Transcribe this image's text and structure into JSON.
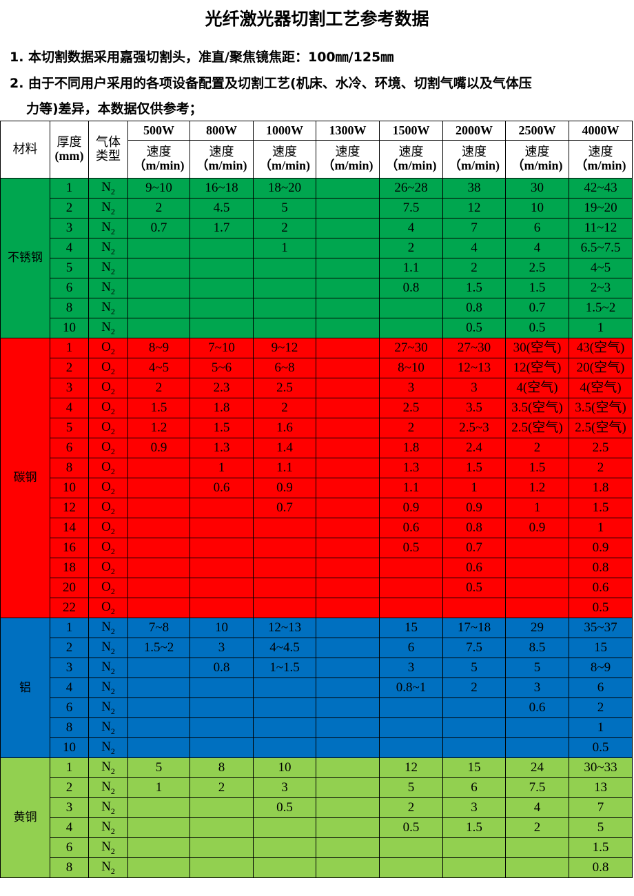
{
  "title": "光纤激光器切割工艺参考数据",
  "notes": [
    "1. 本切割数据采用嘉强切割头，准直/聚焦镜焦距：100㎜/125㎜",
    "2. 由于不同用户采用的各项设备配置及切割工艺(机床、水冷、环境、切割气嘴以及气体压",
    "力等)差异，本数据仅供参考；"
  ],
  "headers": {
    "material": "材料",
    "thickness": "厚度",
    "thickness_unit": "(mm)",
    "gas": "气体",
    "gas2": "类型",
    "speed": "速度",
    "speed_unit": "（m/min)",
    "powers": [
      "500W",
      "800W",
      "1000W",
      "1300W",
      "1500W",
      "2000W",
      "2500W",
      "4000W"
    ]
  },
  "groups": [
    {
      "material": "不锈钢",
      "color": "#00a64f",
      "rows": [
        [
          "1",
          "N",
          "9~10",
          "16~18",
          "18~20",
          "",
          "26~28",
          "38",
          "30",
          "42~43"
        ],
        [
          "2",
          "N",
          "2",
          "4.5",
          "5",
          "",
          "7.5",
          "12",
          "10",
          "19~20"
        ],
        [
          "3",
          "N",
          "0.7",
          "1.7",
          "2",
          "",
          "4",
          "7",
          "6",
          "11~12"
        ],
        [
          "4",
          "N",
          "",
          "",
          "1",
          "",
          "2",
          "4",
          "4",
          "6.5~7.5"
        ],
        [
          "5",
          "N",
          "",
          "",
          "",
          "",
          "1.1",
          "2",
          "2.5",
          "4~5"
        ],
        [
          "6",
          "N",
          "",
          "",
          "",
          "",
          "0.8",
          "1.5",
          "1.5",
          "2~3"
        ],
        [
          "8",
          "N",
          "",
          "",
          "",
          "",
          "",
          "0.8",
          "0.7",
          "1.5~2"
        ],
        [
          "10",
          "N",
          "",
          "",
          "",
          "",
          "",
          "0.5",
          "0.5",
          "1"
        ]
      ]
    },
    {
      "material": "碳钢",
      "color": "#ff0000",
      "rows": [
        [
          "1",
          "O",
          "8~9",
          "7~10",
          "9~12",
          "",
          "27~30",
          "27~30",
          "30(空气)",
          "43(空气)"
        ],
        [
          "2",
          "O",
          "4~5",
          "5~6",
          "6~8",
          "",
          "8~10",
          "12~13",
          "12(空气)",
          "20(空气)"
        ],
        [
          "3",
          "O",
          "2",
          "2.3",
          "2.5",
          "",
          "3",
          "3",
          "4(空气)",
          "4(空气)"
        ],
        [
          "4",
          "O",
          "1.5",
          "1.8",
          "2",
          "",
          "2.5",
          "3.5",
          "3.5(空气)",
          "3.5(空气)"
        ],
        [
          "5",
          "O",
          "1.2",
          "1.5",
          "1.6",
          "",
          "2",
          "2.5~3",
          "2.5(空气)",
          "2.5(空气)"
        ],
        [
          "6",
          "O",
          "0.9",
          "1.3",
          "1.4",
          "",
          "1.8",
          "2.4",
          "2",
          "2.5"
        ],
        [
          "8",
          "O",
          "",
          "1",
          "1.1",
          "",
          "1.3",
          "1.5",
          "1.5",
          "2"
        ],
        [
          "10",
          "O",
          "",
          "0.6",
          "0.9",
          "",
          "1.1",
          "1",
          "1.2",
          "1.8"
        ],
        [
          "12",
          "O",
          "",
          "",
          "0.7",
          "",
          "0.9",
          "0.9",
          "1",
          "1.5"
        ],
        [
          "14",
          "O",
          "",
          "",
          "",
          "",
          "0.6",
          "0.8",
          "0.9",
          "1"
        ],
        [
          "16",
          "O",
          "",
          "",
          "",
          "",
          "0.5",
          "0.7",
          "",
          "0.9"
        ],
        [
          "18",
          "O",
          "",
          "",
          "",
          "",
          "",
          "0.6",
          "",
          "0.8"
        ],
        [
          "20",
          "O",
          "",
          "",
          "",
          "",
          "",
          "0.5",
          "",
          "0.6"
        ],
        [
          "22",
          "O",
          "",
          "",
          "",
          "",
          "",
          "",
          "",
          "0.5"
        ]
      ]
    },
    {
      "material": "铝",
      "color": "#0070c0",
      "rows": [
        [
          "1",
          "N",
          "7~8",
          "10",
          "12~13",
          "",
          "15",
          "17~18",
          "29",
          "35~37"
        ],
        [
          "2",
          "N",
          "1.5~2",
          "3",
          "4~4.5",
          "",
          "6",
          "7.5",
          "8.5",
          "15"
        ],
        [
          "3",
          "N",
          "",
          "0.8",
          "1~1.5",
          "",
          "3",
          "5",
          "5",
          "8~9"
        ],
        [
          "4",
          "N",
          "",
          "",
          "",
          "",
          "0.8~1",
          "2",
          "3",
          "6"
        ],
        [
          "6",
          "N",
          "",
          "",
          "",
          "",
          "",
          "",
          "0.6",
          "2"
        ],
        [
          "8",
          "N",
          "",
          "",
          "",
          "",
          "",
          "",
          "",
          "1"
        ],
        [
          "10",
          "N",
          "",
          "",
          "",
          "",
          "",
          "",
          "",
          "0.5"
        ]
      ]
    },
    {
      "material": "黄铜",
      "color": "#92d050",
      "rows": [
        [
          "1",
          "N",
          "5",
          "8",
          "10",
          "",
          "12",
          "15",
          "24",
          "30~33"
        ],
        [
          "2",
          "N",
          "1",
          "2",
          "3",
          "",
          "5",
          "6",
          "7.5",
          "13"
        ],
        [
          "3",
          "N",
          "",
          "",
          "0.5",
          "",
          "2",
          "3",
          "4",
          "7"
        ],
        [
          "4",
          "N",
          "",
          "",
          "",
          "",
          "0.5",
          "1.5",
          "2",
          "5"
        ],
        [
          "6",
          "N",
          "",
          "",
          "",
          "",
          "",
          "",
          "",
          "1.5"
        ],
        [
          "8",
          "N",
          "",
          "",
          "",
          "",
          "",
          "",
          "",
          "0.8"
        ]
      ]
    }
  ],
  "gas_subscript": "2"
}
